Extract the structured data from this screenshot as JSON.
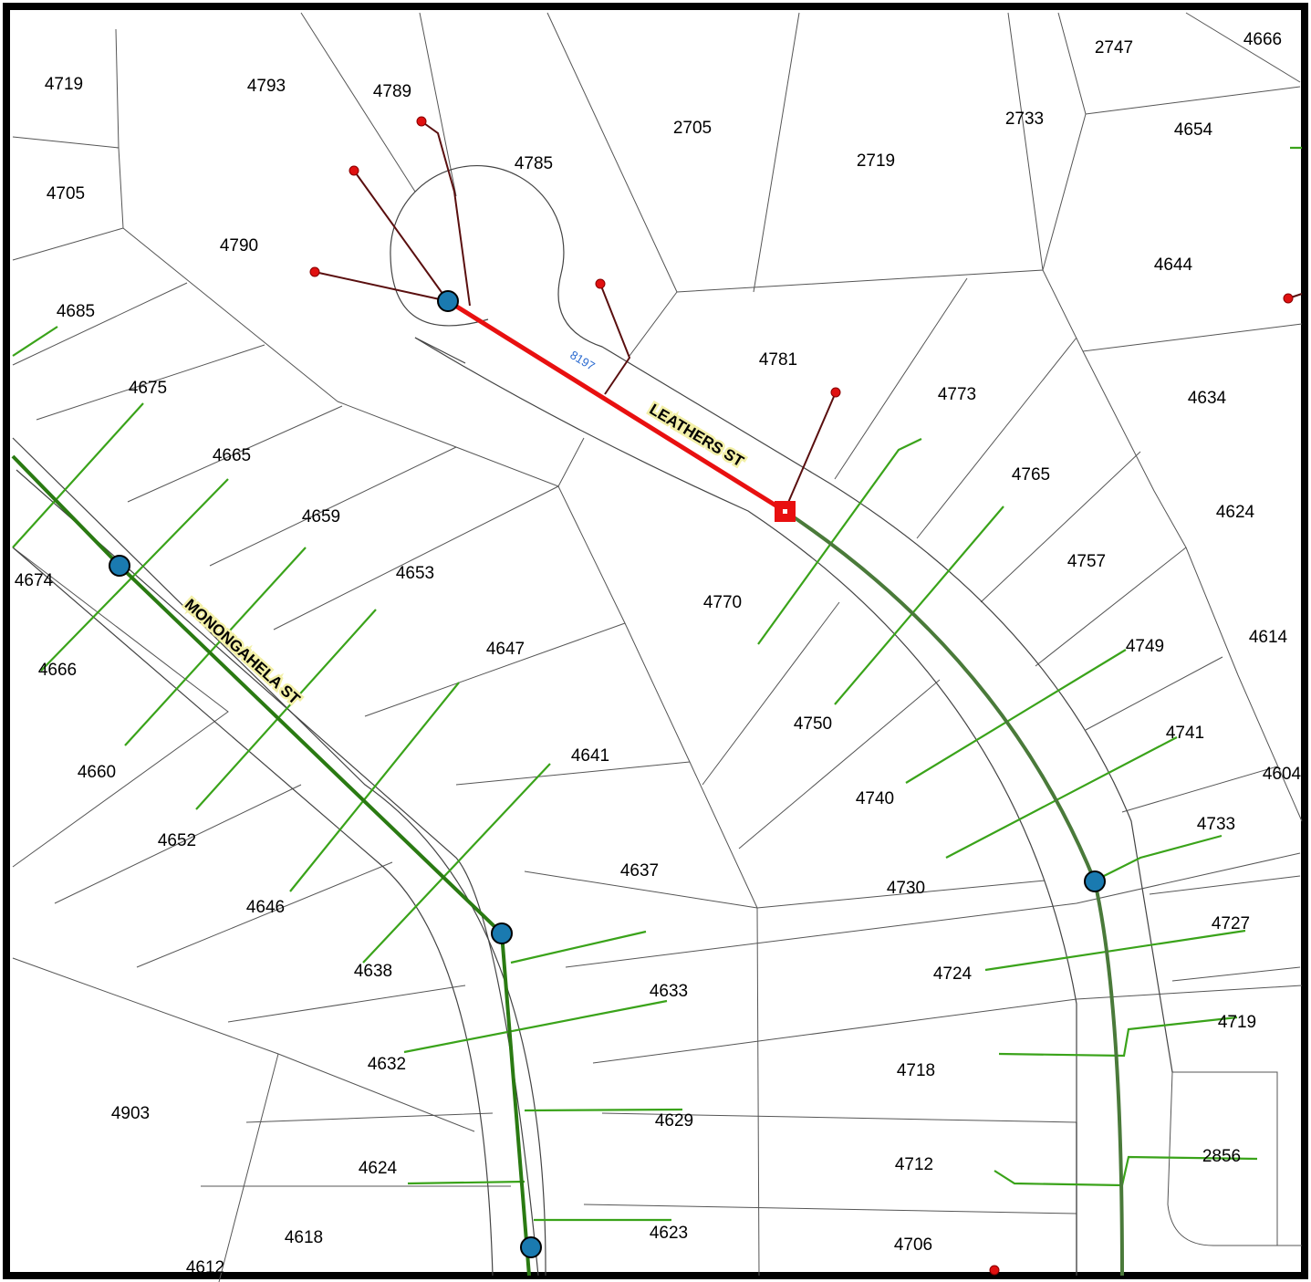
{
  "parcel_labels": [
    "4719",
    "4793",
    "4789",
    "2705",
    "2733",
    "2747",
    "4666",
    "4654",
    "4785",
    "2719",
    "4705",
    "4790",
    "4644",
    "4685",
    "4781",
    "4773",
    "4634",
    "4675",
    "4665",
    "4765",
    "4624",
    "4659",
    "4653",
    "4757",
    "4674",
    "4770",
    "4614",
    "4647",
    "4749",
    "4666",
    "4750",
    "4741",
    "4641",
    "4660",
    "4604",
    "4740",
    "4733",
    "4652",
    "4637",
    "4730",
    "4646",
    "4727",
    "4638",
    "4724",
    "4633",
    "4719",
    "4632",
    "4718",
    "4903",
    "4629",
    "2856",
    "4624",
    "4712",
    "4618",
    "4623",
    "4706",
    "4612"
  ],
  "streets": [
    "LEATHERS ST",
    "MONONGAHELA ST"
  ],
  "segment_label": "8197"
}
